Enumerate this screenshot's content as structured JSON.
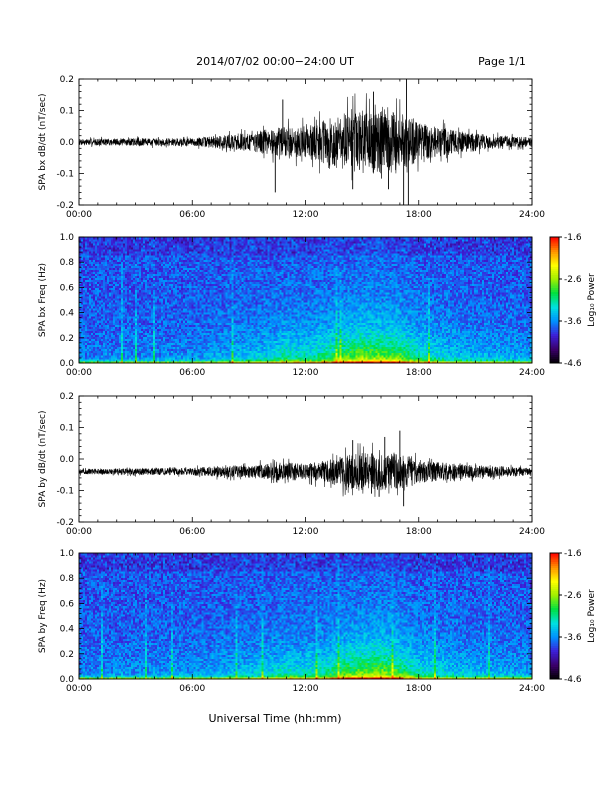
{
  "header": {
    "title": "2014/07/02  00:00−24:00 UT",
    "page": "Page 1/1"
  },
  "footer": {
    "xlabel": "Universal Time (hh:mm)"
  },
  "chart_data": [
    {
      "type": "line",
      "ylabel": "SPA bx dB/dt (nT/sec)",
      "xlim": [
        "00:00",
        "24:00"
      ],
      "x_tick_labels": [
        "00:00",
        "06:00",
        "12:00",
        "18:00",
        "24:00"
      ],
      "ylim": [
        -0.2,
        0.2
      ],
      "y_tick_labels": [
        "-0.2",
        "-0.1",
        "0.0",
        "0.1",
        "0.2"
      ],
      "baseline": 0.0,
      "envelope_hours": [
        0,
        3,
        6,
        8,
        9,
        10,
        11,
        12,
        13,
        14,
        15,
        16,
        17,
        17.5,
        18,
        19,
        20,
        21,
        22,
        24
      ],
      "envelope_amplitude": [
        0.01,
        0.012,
        0.012,
        0.025,
        0.03,
        0.04,
        0.05,
        0.05,
        0.07,
        0.09,
        0.1,
        0.1,
        0.1,
        0.08,
        0.06,
        0.05,
        0.035,
        0.03,
        0.02,
        0.015
      ],
      "spikes": [
        {
          "hour": 10.4,
          "value": -0.16
        },
        {
          "hour": 10.8,
          "value": 0.135
        },
        {
          "hour": 14.5,
          "value": -0.15
        },
        {
          "hour": 15.6,
          "value": 0.16
        },
        {
          "hour": 16.4,
          "value": -0.15
        },
        {
          "hour": 17.2,
          "value": -0.2
        },
        {
          "hour": 17.35,
          "value": 0.2
        },
        {
          "hour": 17.45,
          "value": -0.2
        }
      ],
      "color": "#000000"
    },
    {
      "type": "heatmap",
      "ylabel": "SPA bx Freq (Hz)",
      "xlim": [
        "00:00",
        "24:00"
      ],
      "x_tick_labels": [
        "00:00",
        "06:00",
        "12:00",
        "18:00",
        "24:00"
      ],
      "ylim": [
        0.0,
        1.0
      ],
      "y_tick_labels": [
        "0.0",
        "0.2",
        "0.4",
        "0.6",
        "0.8",
        "1.0"
      ],
      "colorbar": {
        "label": "Log₁₀ Power",
        "range": [
          -4.6,
          -1.6
        ],
        "tick_labels": [
          "-4.6",
          "-3.6",
          "-2.6",
          "-1.6"
        ],
        "colors": [
          "#000000",
          "#3a006a",
          "#3c1fd8",
          "#0090ff",
          "#00e0e0",
          "#00e040",
          "#a0f000",
          "#ffff00",
          "#ff9000",
          "#ff0000"
        ]
      },
      "activity_hours": [
        0,
        6,
        8,
        10,
        11,
        12,
        13,
        14,
        15,
        16,
        17,
        18,
        20,
        24
      ],
      "activity_level": [
        0.1,
        0.15,
        0.25,
        0.35,
        0.5,
        0.45,
        0.55,
        0.7,
        0.85,
        0.8,
        0.75,
        0.5,
        0.3,
        0.2
      ]
    },
    {
      "type": "line",
      "ylabel": "SPA by dB/dt (nT/sec)",
      "xlim": [
        "00:00",
        "24:00"
      ],
      "x_tick_labels": [
        "00:00",
        "06:00",
        "12:00",
        "18:00",
        "24:00"
      ],
      "ylim": [
        -0.2,
        0.2
      ],
      "y_tick_labels": [
        "-0.2",
        "-0.1",
        "0.0",
        "0.1",
        "0.2"
      ],
      "baseline": -0.04,
      "envelope_hours": [
        0,
        3,
        6,
        8,
        9,
        10,
        11,
        12,
        13,
        14,
        15,
        16,
        17,
        17.5,
        18,
        19,
        20,
        21,
        22,
        24
      ],
      "envelope_amplitude": [
        0.008,
        0.01,
        0.012,
        0.02,
        0.02,
        0.025,
        0.03,
        0.025,
        0.035,
        0.05,
        0.06,
        0.06,
        0.055,
        0.05,
        0.04,
        0.03,
        0.025,
        0.02,
        0.018,
        0.012
      ],
      "spikes": [
        {
          "hour": 14.5,
          "value": 0.06
        },
        {
          "hour": 15.5,
          "value": -0.11
        },
        {
          "hour": 16.2,
          "value": 0.07
        },
        {
          "hour": 17.0,
          "value": 0.09
        },
        {
          "hour": 17.2,
          "value": -0.15
        },
        {
          "hour": 15.9,
          "value": -0.12
        }
      ],
      "color": "#000000"
    },
    {
      "type": "heatmap",
      "ylabel": "SPA by Freq (Hz)",
      "xlim": [
        "00:00",
        "24:00"
      ],
      "x_tick_labels": [
        "00:00",
        "06:00",
        "12:00",
        "18:00",
        "24:00"
      ],
      "ylim": [
        0.0,
        1.0
      ],
      "y_tick_labels": [
        "0.0",
        "0.2",
        "0.4",
        "0.6",
        "0.8",
        "1.0"
      ],
      "colorbar": {
        "label": "Log₁₀ Power",
        "range": [
          -4.6,
          -1.6
        ],
        "tick_labels": [
          "-4.6",
          "-3.6",
          "-2.6",
          "-1.6"
        ],
        "colors": [
          "#000000",
          "#3a006a",
          "#3c1fd8",
          "#0090ff",
          "#00e0e0",
          "#00e040",
          "#a0f000",
          "#ffff00",
          "#ff9000",
          "#ff0000"
        ]
      },
      "activity_hours": [
        0,
        6,
        8,
        10,
        11,
        12,
        13,
        14,
        15,
        16,
        17,
        18,
        20,
        24
      ],
      "activity_level": [
        0.12,
        0.18,
        0.25,
        0.35,
        0.45,
        0.4,
        0.5,
        0.7,
        0.8,
        0.85,
        0.7,
        0.45,
        0.3,
        0.2
      ]
    }
  ]
}
